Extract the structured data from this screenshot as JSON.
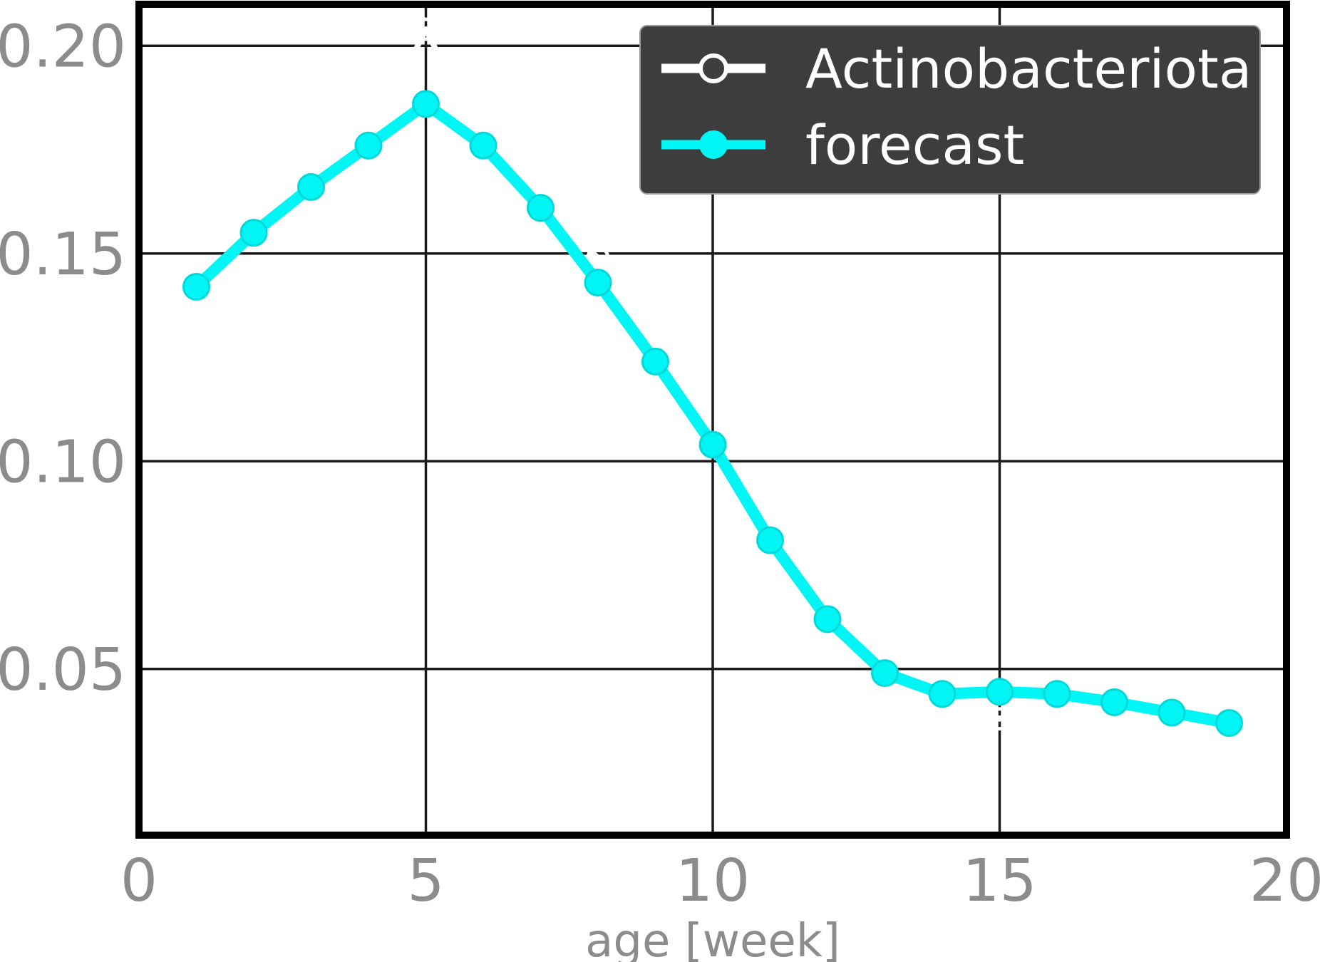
{
  "chart_data": {
    "type": "line",
    "title": "",
    "xlabel": "age [week]",
    "ylabel": "",
    "xlim": [
      0,
      20
    ],
    "ylim": [
      0.01,
      0.21
    ],
    "xticks": [
      0,
      5,
      10,
      15,
      20
    ],
    "xtick_labels": [
      "0",
      "5",
      "10",
      "15",
      "20"
    ],
    "yticks": [
      0.05,
      0.1,
      0.15,
      0.2
    ],
    "ytick_labels": [
      "0.05",
      "0.10",
      "0.15",
      "0.20"
    ],
    "grid": true,
    "legend_position": "top-right",
    "series": [
      {
        "name": "Actinobacteriota",
        "color": "#ffffff",
        "marker": "open-circle",
        "x": [
          1,
          2,
          3,
          4,
          5,
          6,
          7,
          8,
          9,
          10,
          11,
          12,
          13,
          14,
          15,
          16,
          17,
          18,
          19
        ],
        "values": [
          0.143,
          0.155,
          0.166,
          0.176,
          0.204,
          0.176,
          0.161,
          0.149,
          0.124,
          0.104,
          0.081,
          0.062,
          0.049,
          0.044,
          0.038,
          0.044,
          0.042,
          0.04,
          0.037
        ]
      },
      {
        "name": "forecast",
        "color": "#00f5f5",
        "marker": "filled-circle",
        "x": [
          1,
          2,
          3,
          4,
          5,
          6,
          7,
          8,
          9,
          10,
          11,
          12,
          13,
          14,
          15,
          16,
          17,
          18,
          19
        ],
        "values": [
          0.142,
          0.155,
          0.166,
          0.176,
          0.186,
          0.176,
          0.161,
          0.143,
          0.124,
          0.104,
          0.081,
          0.062,
          0.049,
          0.044,
          0.0445,
          0.044,
          0.042,
          0.0395,
          0.037
        ]
      }
    ]
  },
  "colors": {
    "frame": "#000000",
    "grid": "#1a1a1a",
    "tick_text": "#8c8c8c",
    "legend_bg": "#3d3d3d",
    "legend_text": "#ffffff"
  }
}
